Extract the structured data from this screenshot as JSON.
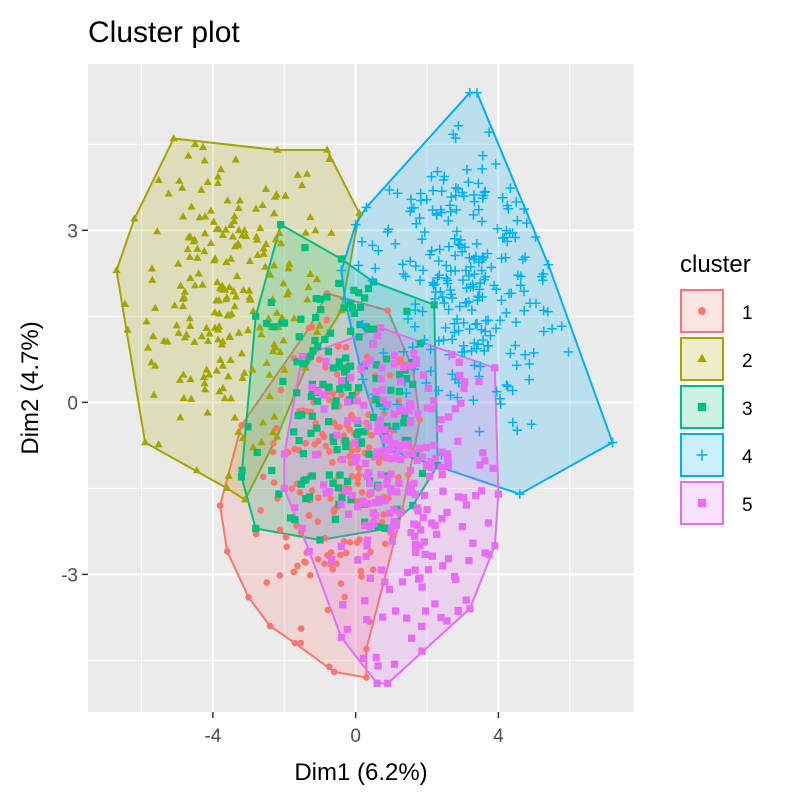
{
  "chart_data": {
    "type": "scatter",
    "title": "Cluster plot",
    "xlabel": "Dim1 (6.2%)",
    "ylabel": "Dim2 (4.7%)",
    "xlim": [
      -7.5,
      7.8
    ],
    "ylim": [
      -5.4,
      5.9
    ],
    "x_ticks": [
      -4,
      0,
      4
    ],
    "y_ticks": [
      -3,
      0,
      3
    ],
    "x_tick_labels": [
      "-4",
      "0",
      "4"
    ],
    "y_tick_labels": [
      "-3",
      "0",
      "3"
    ],
    "grid": true,
    "legend": {
      "title": "cluster",
      "position": "right",
      "entries": [
        {
          "label": "1",
          "color": "#F8766D",
          "shape": "circle"
        },
        {
          "label": "2",
          "color": "#A3A500",
          "shape": "triangle"
        },
        {
          "label": "3",
          "color": "#00BF7D",
          "shape": "square"
        },
        {
          "label": "4",
          "color": "#00B0F6",
          "shape": "plus"
        },
        {
          "label": "5",
          "color": "#E76BF3",
          "shape": "square"
        }
      ]
    },
    "series": [
      {
        "name": "1",
        "color": "#F8766D",
        "shape": "circle",
        "hull": [
          [
            -0.8,
            1.9
          ],
          [
            0.9,
            1.6
          ],
          [
            1.6,
            0.6
          ],
          [
            1.8,
            -0.3
          ],
          [
            1.3,
            -1.9
          ],
          [
            0.3,
            -4.3
          ],
          [
            0.3,
            -4.8
          ],
          [
            -0.6,
            -4.7
          ],
          [
            -1.7,
            -4.2
          ],
          [
            -2.4,
            -3.9
          ],
          [
            -3.0,
            -3.4
          ],
          [
            -3.6,
            -2.6
          ],
          [
            -3.8,
            -1.8
          ],
          [
            -3.2,
            -0.4
          ],
          [
            -1.3,
            1.3
          ]
        ],
        "center": [
          -0.4,
          -1.2
        ],
        "spread": [
          1.1,
          1.3
        ],
        "count": 180
      },
      {
        "name": "2",
        "color": "#A3A500",
        "shape": "triangle",
        "hull": [
          [
            -5.1,
            4.6
          ],
          [
            -2.2,
            4.4
          ],
          [
            -0.8,
            4.4
          ],
          [
            0.1,
            3.3
          ],
          [
            -0.4,
            1.6
          ],
          [
            -1.4,
            0.6
          ],
          [
            -2.2,
            -0.6
          ],
          [
            -3.1,
            -1.7
          ],
          [
            -3.6,
            -1.5
          ],
          [
            -5.9,
            -0.7
          ],
          [
            -6.7,
            2.3
          ],
          [
            -6.2,
            3.2
          ]
        ],
        "center": [
          -3.6,
          1.8
        ],
        "spread": [
          1.4,
          1.4
        ],
        "count": 220
      },
      {
        "name": "3",
        "color": "#00BF7D",
        "shape": "square",
        "hull": [
          [
            -2.1,
            3.1
          ],
          [
            -0.4,
            2.5
          ],
          [
            0.5,
            2.1
          ],
          [
            2.2,
            1.7
          ],
          [
            2.3,
            -1.1
          ],
          [
            1.6,
            -1.8
          ],
          [
            0.9,
            -2.2
          ],
          [
            -1.0,
            -2.4
          ],
          [
            -2.8,
            -2.2
          ],
          [
            -3.2,
            -1.3
          ],
          [
            -2.8,
            1.5
          ]
        ],
        "center": [
          -0.3,
          0.0
        ],
        "spread": [
          1.3,
          1.2
        ],
        "count": 150
      },
      {
        "name": "4",
        "color": "#00B0F6",
        "shape": "plus",
        "hull": [
          [
            3.2,
            5.4
          ],
          [
            3.4,
            5.4
          ],
          [
            5.4,
            2.4
          ],
          [
            7.2,
            -0.7
          ],
          [
            4.6,
            -1.6
          ],
          [
            0.8,
            -0.8
          ],
          [
            0.2,
            0.4
          ],
          [
            -0.3,
            1.8
          ],
          [
            -0.4,
            2.3
          ],
          [
            0.0,
            3.1
          ],
          [
            0.3,
            3.4
          ]
        ],
        "center": [
          3.0,
          2.2
        ],
        "spread": [
          1.3,
          1.4
        ],
        "count": 260
      },
      {
        "name": "5",
        "color": "#E76BF3",
        "shape": "square",
        "hull": [
          [
            0.7,
            1.3
          ],
          [
            3.9,
            0.6
          ],
          [
            4.0,
            -1.6
          ],
          [
            3.9,
            -2.5
          ],
          [
            3.2,
            -3.6
          ],
          [
            0.9,
            -4.9
          ],
          [
            0.6,
            -4.9
          ],
          [
            -0.4,
            -4.1
          ],
          [
            -1.3,
            -2.6
          ],
          [
            -2.0,
            -1.5
          ],
          [
            -2.0,
            -0.9
          ],
          [
            -1.5,
            0.8
          ]
        ],
        "center": [
          1.4,
          -1.5
        ],
        "spread": [
          1.3,
          1.4
        ],
        "count": 240
      }
    ]
  }
}
